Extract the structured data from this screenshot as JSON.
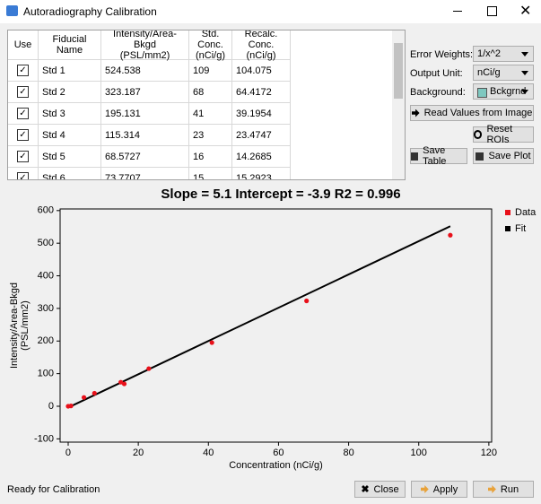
{
  "window": {
    "title": "Autoradiography Calibration"
  },
  "table": {
    "headers": [
      "Use",
      "Fiducial Name",
      "Intensity/Area-Bkgd\n(PSL/mm2)",
      "Std. Conc.\n(nCi/g)",
      "Recalc. Conc.\n(nCi/g)"
    ],
    "rows": [
      [
        "Std 1",
        "524.538",
        "109",
        "104.075"
      ],
      [
        "Std 2",
        "323.187",
        "68",
        "64.4172"
      ],
      [
        "Std 3",
        "195.131",
        "41",
        "39.1954"
      ],
      [
        "Std 4",
        "115.314",
        "23",
        "23.4747"
      ],
      [
        "Std 5",
        "68.5727",
        "16",
        "14.2685"
      ],
      [
        "Std 6",
        "73.7707",
        "15",
        "15.2923"
      ]
    ]
  },
  "controls": {
    "error_weights": {
      "label": "Error Weights:",
      "value": "1/x^2"
    },
    "output_unit": {
      "label": "Output Unit:",
      "value": "nCi/g"
    },
    "background": {
      "label": "Background:",
      "value": "Bckgrnd"
    },
    "read_values": "Read Values from Image",
    "reset_rois": "Reset ROIs",
    "save_table": "Save Table",
    "save_plot": "Save Plot",
    "close": "Close",
    "apply": "Apply",
    "run": "Run"
  },
  "status": "Ready for Calibration",
  "chart_data": {
    "type": "scatter",
    "title": "Slope = 5.1  Intercept = -3.9  R2 = 0.996",
    "x_label": "Concentration (nCi/g)",
    "y_label": [
      "Intensity/Area-Bkgd",
      "(PSL/mm2)"
    ],
    "xlim": [
      -2.3,
      120.8
    ],
    "ylim": [
      -110,
      605
    ],
    "xticks": [
      0,
      20,
      40,
      60,
      80,
      100,
      120
    ],
    "yticks": [
      -100,
      0,
      100,
      200,
      300,
      400,
      500,
      600
    ],
    "series": [
      {
        "name": "Data",
        "type": "scatter",
        "color": "#e8101a",
        "x": [
          109,
          68,
          41,
          23,
          16,
          15,
          7.5,
          4.5,
          0.8,
          0
        ],
        "values": [
          524.538,
          323.187,
          195.131,
          115.314,
          68.5727,
          73.7707,
          40,
          27,
          1,
          0
        ]
      },
      {
        "name": "Fit",
        "type": "line",
        "color": "#000000",
        "x": [
          0,
          109
        ],
        "values": [
          -3.9,
          552
        ]
      }
    ]
  }
}
